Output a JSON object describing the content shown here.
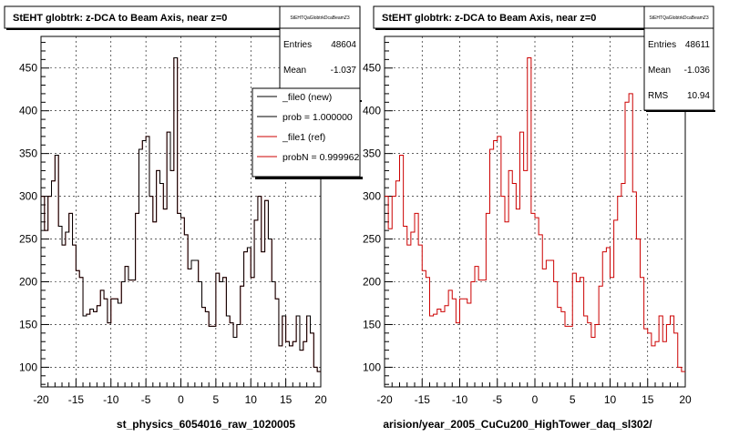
{
  "panels": [
    {
      "id": "left",
      "title": "StEHT globtrk: z-DCA to Beam Axis, near z=0",
      "stats_header": "StEHTQaGlobtrkDcaBeamZ3",
      "stats": [
        {
          "label": "Entries",
          "value": "48604"
        },
        {
          "label": "Mean",
          "value": "-1.037"
        }
      ],
      "legend": [
        {
          "label": "_file0 (new)",
          "color": "#000000"
        },
        {
          "label": "prob = 1.000000",
          "color": "#000000"
        },
        {
          "label": "_file1 (ref)",
          "color": "#cc0000"
        },
        {
          "label": "probN = 0.999962",
          "color": "#cc0000"
        }
      ],
      "bottom_label": "st_physics_6054016_raw_1020005"
    },
    {
      "id": "right",
      "title": "StEHT globtrk: z-DCA to Beam Axis, near z=0",
      "stats_header": "StEHTQaGlobtrkDcaBeamZ3",
      "stats": [
        {
          "label": "Entries",
          "value": "48611"
        },
        {
          "label": "Mean",
          "value": "-1.036"
        },
        {
          "label": "RMS",
          "value": "10.94"
        }
      ],
      "bottom_label": "arision/year_2005_CuCu200_HighTower_daq_sl302/"
    }
  ],
  "chart_data": [
    {
      "type": "line",
      "title": "StEHT globtrk: z-DCA to Beam Axis, near z=0",
      "xlim": [
        -20,
        20
      ],
      "ylim": [
        77,
        487
      ],
      "x_ticks": [
        -20,
        -15,
        -10,
        -5,
        0,
        5,
        10,
        15,
        20
      ],
      "y_ticks": [
        100,
        150,
        200,
        250,
        300,
        350,
        400,
        450
      ],
      "grid": true,
      "legend_position": "top-right",
      "series": [
        {
          "name": "_file0 (new)",
          "color": "#000000",
          "values": [
            300,
            260,
            300,
            318,
            348,
            265,
            243,
            258,
            280,
            243,
            213,
            205,
            160,
            162,
            168,
            165,
            172,
            190,
            180,
            152,
            180,
            180,
            175,
            200,
            218,
            202,
            202,
            280,
            355,
            365,
            370,
            300,
            270,
            330,
            315,
            285,
            375,
            330,
            462,
            280,
            275,
            255,
            215,
            225,
            225,
            200,
            170,
            165,
            148,
            148,
            210,
            200,
            205,
            160,
            152,
            135,
            150,
            195,
            235,
            240,
            205,
            272,
            300,
            235,
            295,
            250,
            200,
            180,
            125,
            160,
            130,
            125,
            130,
            160,
            120,
            130,
            160,
            140,
            100,
            95
          ]
        },
        {
          "name": "_file1 (ref)",
          "color": "#cc0000",
          "values": [
            300,
            260,
            300,
            318,
            348,
            265,
            243,
            258,
            280,
            243,
            213,
            205,
            160,
            162,
            168,
            165,
            172,
            190,
            180,
            152,
            180,
            180,
            175,
            200,
            218,
            202,
            202,
            280,
            355,
            365,
            370,
            300,
            270,
            330,
            315,
            285,
            375,
            330,
            462,
            280,
            275,
            255,
            215,
            225,
            225,
            200,
            170,
            165,
            148,
            148,
            210,
            200,
            205,
            160,
            152,
            135,
            150,
            195,
            235,
            240,
            205,
            272,
            300,
            235,
            295,
            250,
            200,
            180,
            125,
            160,
            130,
            125,
            130,
            160,
            120,
            130,
            160,
            140,
            100,
            95
          ]
        }
      ]
    },
    {
      "type": "line",
      "title": "StEHT globtrk: z-DCA to Beam Axis, near z=0",
      "xlim": [
        -20,
        20
      ],
      "ylim": [
        77,
        487
      ],
      "x_ticks": [
        -20,
        -15,
        -10,
        -5,
        0,
        5,
        10,
        15,
        20
      ],
      "y_ticks": [
        100,
        150,
        200,
        250,
        300,
        350,
        400,
        450
      ],
      "grid": true,
      "series": [
        {
          "color": "#cc0000",
          "values": [
            300,
            262,
            300,
            318,
            348,
            265,
            243,
            258,
            280,
            243,
            213,
            205,
            160,
            162,
            168,
            165,
            172,
            190,
            180,
            152,
            180,
            180,
            175,
            200,
            218,
            202,
            202,
            280,
            355,
            365,
            370,
            300,
            270,
            330,
            315,
            285,
            375,
            330,
            462,
            280,
            275,
            255,
            215,
            225,
            225,
            200,
            170,
            165,
            148,
            148,
            210,
            200,
            205,
            160,
            152,
            135,
            150,
            195,
            235,
            240,
            205,
            272,
            300,
            315,
            410,
            420,
            305,
            250,
            205,
            145,
            140,
            125,
            130,
            160,
            130,
            150,
            160,
            140,
            100,
            95
          ]
        }
      ]
    }
  ]
}
